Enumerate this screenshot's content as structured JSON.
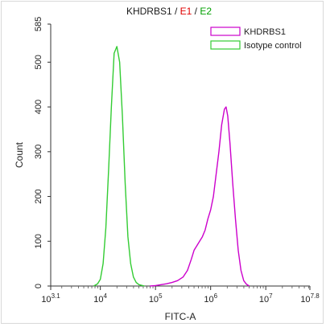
{
  "chart_data": {
    "type": "line",
    "title_parts": [
      {
        "text": "KHDRBS1",
        "color": "#1a1a1a"
      },
      {
        "text": " / ",
        "color": "#1a1a1a"
      },
      {
        "text": "E1",
        "color": "#e00000"
      },
      {
        "text": " / ",
        "color": "#1a1a1a"
      },
      {
        "text": "E2",
        "color": "#00a000"
      }
    ],
    "xlabel": "FITC-A",
    "ylabel": "Count",
    "xscale": "log10",
    "xlim_log10": [
      3.1,
      7.8
    ],
    "ylim": [
      0,
      585
    ],
    "y_ticks": [
      0,
      100,
      200,
      300,
      400,
      500,
      585
    ],
    "x_ticks": [
      {
        "base": "10",
        "exp": "3.1",
        "log10": 3.1
      },
      {
        "base": "10",
        "exp": "4",
        "log10": 4
      },
      {
        "base": "10",
        "exp": "5",
        "log10": 5
      },
      {
        "base": "10",
        "exp": "6",
        "log10": 6
      },
      {
        "base": "10",
        "exp": "7",
        "log10": 7
      },
      {
        "base": "10",
        "exp": "7.8",
        "log10": 7.8
      }
    ],
    "grid": false,
    "legend_position": "top-right",
    "series": [
      {
        "name": "KHDRBS1",
        "color": "#cc00cc",
        "points_log10x": [
          [
            4.9,
            0
          ],
          [
            5.0,
            1
          ],
          [
            5.1,
            3
          ],
          [
            5.2,
            5
          ],
          [
            5.3,
            8
          ],
          [
            5.4,
            12
          ],
          [
            5.5,
            20
          ],
          [
            5.58,
            35
          ],
          [
            5.65,
            60
          ],
          [
            5.7,
            80
          ],
          [
            5.75,
            90
          ],
          [
            5.8,
            100
          ],
          [
            5.85,
            110
          ],
          [
            5.9,
            125
          ],
          [
            5.95,
            150
          ],
          [
            6.0,
            170
          ],
          [
            6.05,
            200
          ],
          [
            6.1,
            250
          ],
          [
            6.15,
            300
          ],
          [
            6.2,
            360
          ],
          [
            6.25,
            395
          ],
          [
            6.28,
            400
          ],
          [
            6.31,
            380
          ],
          [
            6.35,
            320
          ],
          [
            6.4,
            230
          ],
          [
            6.45,
            150
          ],
          [
            6.5,
            80
          ],
          [
            6.55,
            35
          ],
          [
            6.6,
            12
          ],
          [
            6.65,
            4
          ],
          [
            6.7,
            0
          ]
        ]
      },
      {
        "name": "Isotype control",
        "color": "#33cc33",
        "points_log10x": [
          [
            3.88,
            0
          ],
          [
            3.95,
            5
          ],
          [
            4.0,
            15
          ],
          [
            4.05,
            50
          ],
          [
            4.1,
            130
          ],
          [
            4.15,
            260
          ],
          [
            4.2,
            400
          ],
          [
            4.25,
            520
          ],
          [
            4.3,
            535
          ],
          [
            4.35,
            500
          ],
          [
            4.4,
            380
          ],
          [
            4.45,
            230
          ],
          [
            4.5,
            110
          ],
          [
            4.55,
            50
          ],
          [
            4.6,
            20
          ],
          [
            4.65,
            8
          ],
          [
            4.7,
            3
          ],
          [
            4.8,
            0
          ]
        ]
      }
    ]
  }
}
